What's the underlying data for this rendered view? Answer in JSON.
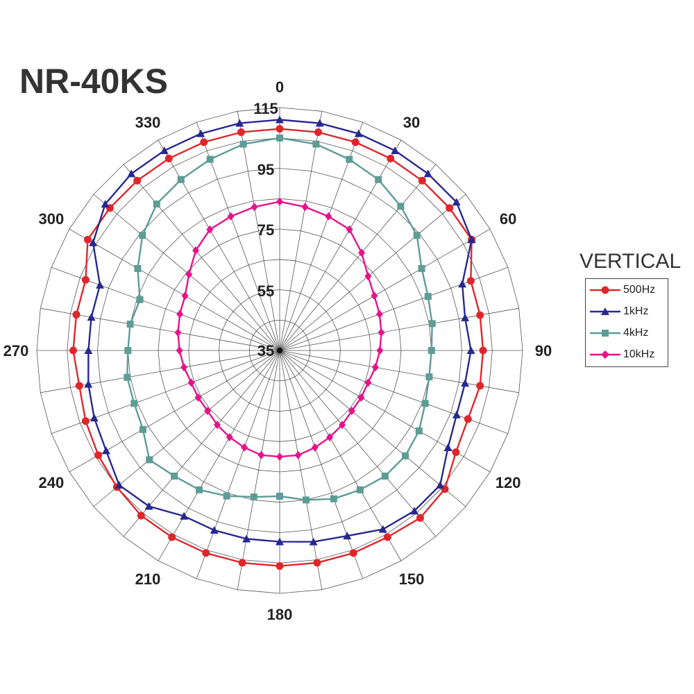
{
  "chart_data": {
    "type": "polar-line",
    "title": "NR-40KS",
    "radial_ticks": [
      "35",
      "55",
      "75",
      "95",
      "115"
    ],
    "radial_range": [
      35,
      115
    ],
    "angle_labels": [
      "0",
      "30",
      "60",
      "90",
      "120",
      "150",
      "180",
      "210",
      "240",
      "270",
      "300",
      "330"
    ],
    "angle_step_degrees": 10,
    "legend_title": "VERTICAL",
    "legend_position": "right",
    "angles": [
      0,
      10,
      20,
      30,
      40,
      50,
      60,
      70,
      80,
      90,
      100,
      110,
      120,
      130,
      140,
      150,
      160,
      170,
      180,
      190,
      200,
      210,
      220,
      230,
      240,
      250,
      260,
      270,
      280,
      290,
      300,
      310,
      320,
      330,
      340,
      350
    ],
    "series": [
      {
        "name": "500Hz",
        "color": "#e0262b",
        "marker": "circle",
        "values": [
          108,
          108,
          108,
          108,
          108,
          108,
          108,
          102,
          102,
          102,
          102,
          101,
          102,
          106,
          107,
          106,
          106,
          106,
          106,
          106,
          106,
          106,
          106,
          105,
          104,
          103,
          102,
          103,
          103,
          103,
          108,
          108,
          108,
          108,
          108,
          108
        ]
      },
      {
        "name": "1kHz",
        "color": "#27288f",
        "marker": "triangle",
        "values": [
          111,
          111,
          111,
          111,
          111,
          111,
          108,
          99,
          97,
          98,
          97,
          97,
          99,
          104,
          104,
          103,
          100,
          99,
          98,
          98,
          98,
          98,
          102,
          104,
          101,
          100,
          99,
          98,
          98,
          98,
          106,
          110,
          111,
          111,
          111,
          111
        ]
      },
      {
        "name": "4kHz",
        "color": "#5e9c96",
        "marker": "square",
        "values": [
          105,
          104,
          102,
          100,
          97,
          94,
          89,
          87,
          86,
          85,
          85,
          86,
          88,
          89,
          89,
          88,
          87,
          85,
          83,
          84,
          86,
          88,
          89,
          91,
          87,
          86,
          86,
          85,
          85,
          84,
          89,
          94,
          98,
          100,
          102,
          104
        ]
      },
      {
        "name": "10kHz",
        "color": "#e8118b",
        "marker": "diamond",
        "values": [
          84,
          83,
          82,
          81,
          77,
          73,
          71,
          70,
          69,
          68,
          67,
          66,
          66,
          66,
          67,
          68,
          69,
          70,
          70,
          70,
          69,
          68,
          67,
          66,
          66,
          66,
          67,
          68,
          69,
          70,
          71,
          74,
          78,
          81,
          82,
          83
        ]
      }
    ]
  }
}
